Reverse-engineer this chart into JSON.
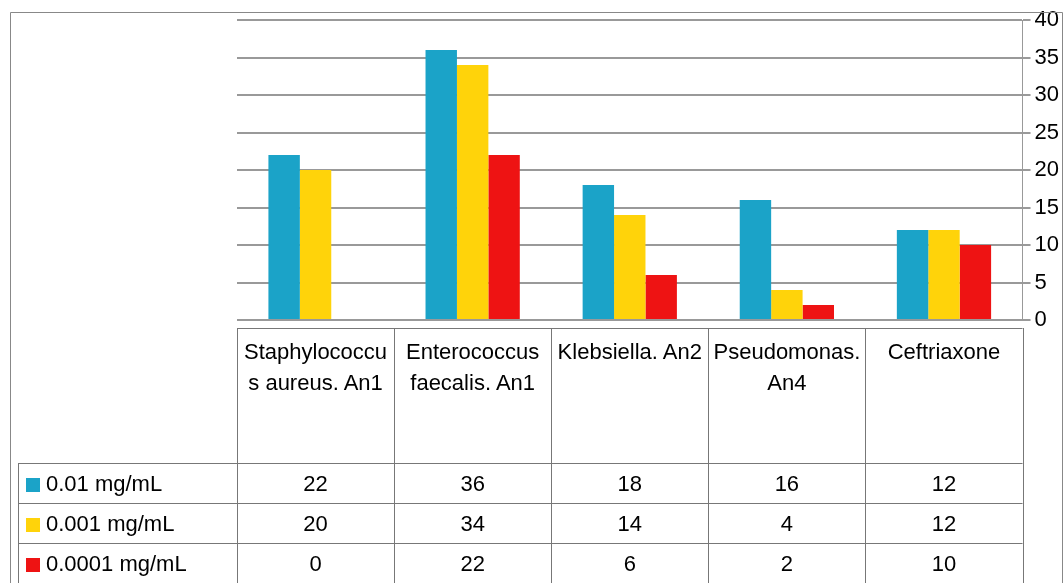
{
  "chart_data": {
    "type": "bar",
    "categories": [
      "Staphylococcus aureus. An1",
      "Enterococcus faecalis. An1",
      "Klebsiella. An2",
      "Pseudomonas. An4",
      "Ceftriaxone"
    ],
    "series": [
      {
        "name": "0.01 mg/mL",
        "color": "#1ba3c8",
        "values": [
          22,
          36,
          18,
          16,
          12
        ]
      },
      {
        "name": "0.001 mg/mL",
        "color": "#ffd30a",
        "values": [
          20,
          34,
          14,
          4,
          12
        ]
      },
      {
        "name": "0.0001 mg/mL",
        "color": "#ee1313",
        "values": [
          0,
          22,
          6,
          2,
          10
        ]
      }
    ],
    "ylim": [
      0,
      40
    ],
    "yticks": [
      0,
      5,
      10,
      15,
      20,
      25,
      30,
      35,
      40
    ],
    "grid": "y",
    "legend": "bottom",
    "data_labels": true
  }
}
